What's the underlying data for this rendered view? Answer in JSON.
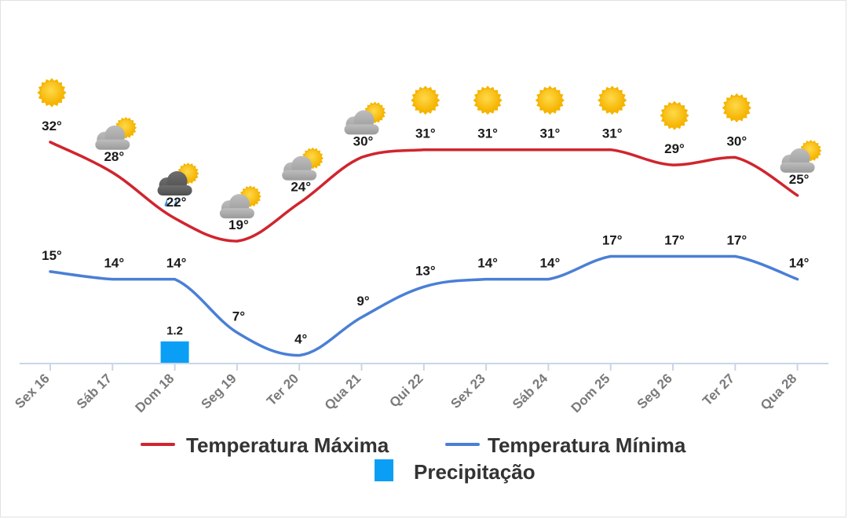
{
  "chart_data": {
    "type": "line",
    "categories": [
      "Sex 16",
      "Sáb 17",
      "Dom 18",
      "Seg 19",
      "Ter 20",
      "Qua 21",
      "Qui 22",
      "Sex 23",
      "Sáb 24",
      "Dom 25",
      "Seg 26",
      "Ter 27",
      "Qua 28"
    ],
    "series": [
      {
        "name": "Temperatura Máxima",
        "type": "line",
        "color": "#d0252e",
        "values": [
          32,
          28,
          22,
          19,
          24,
          30,
          31,
          31,
          31,
          31,
          29,
          30,
          25
        ]
      },
      {
        "name": "Temperatura Mínima",
        "type": "line",
        "color": "#4a7fd6",
        "values": [
          15,
          14,
          14,
          7,
          4,
          9,
          13,
          14,
          14,
          17,
          17,
          17,
          14
        ]
      },
      {
        "name": "Precipitação",
        "type": "bar",
        "color": "#0a9ff5",
        "values": [
          null,
          null,
          1.2,
          null,
          null,
          null,
          null,
          null,
          null,
          null,
          null,
          null,
          null
        ]
      }
    ],
    "value_suffix": "°",
    "weather_icons": [
      "sun-icon",
      "sun-cloud-icon",
      "sun-cloud-rain-icon",
      "sun-cloud-icon",
      "sun-cloud-icon",
      "sun-cloud-icon",
      "sun-icon",
      "sun-icon",
      "sun-icon",
      "sun-icon",
      "sun-icon",
      "sun-icon",
      "sun-cloud-icon"
    ],
    "title": "",
    "xlabel": "",
    "ylabel": "",
    "grid": false,
    "legend_position": "bottom-center"
  }
}
